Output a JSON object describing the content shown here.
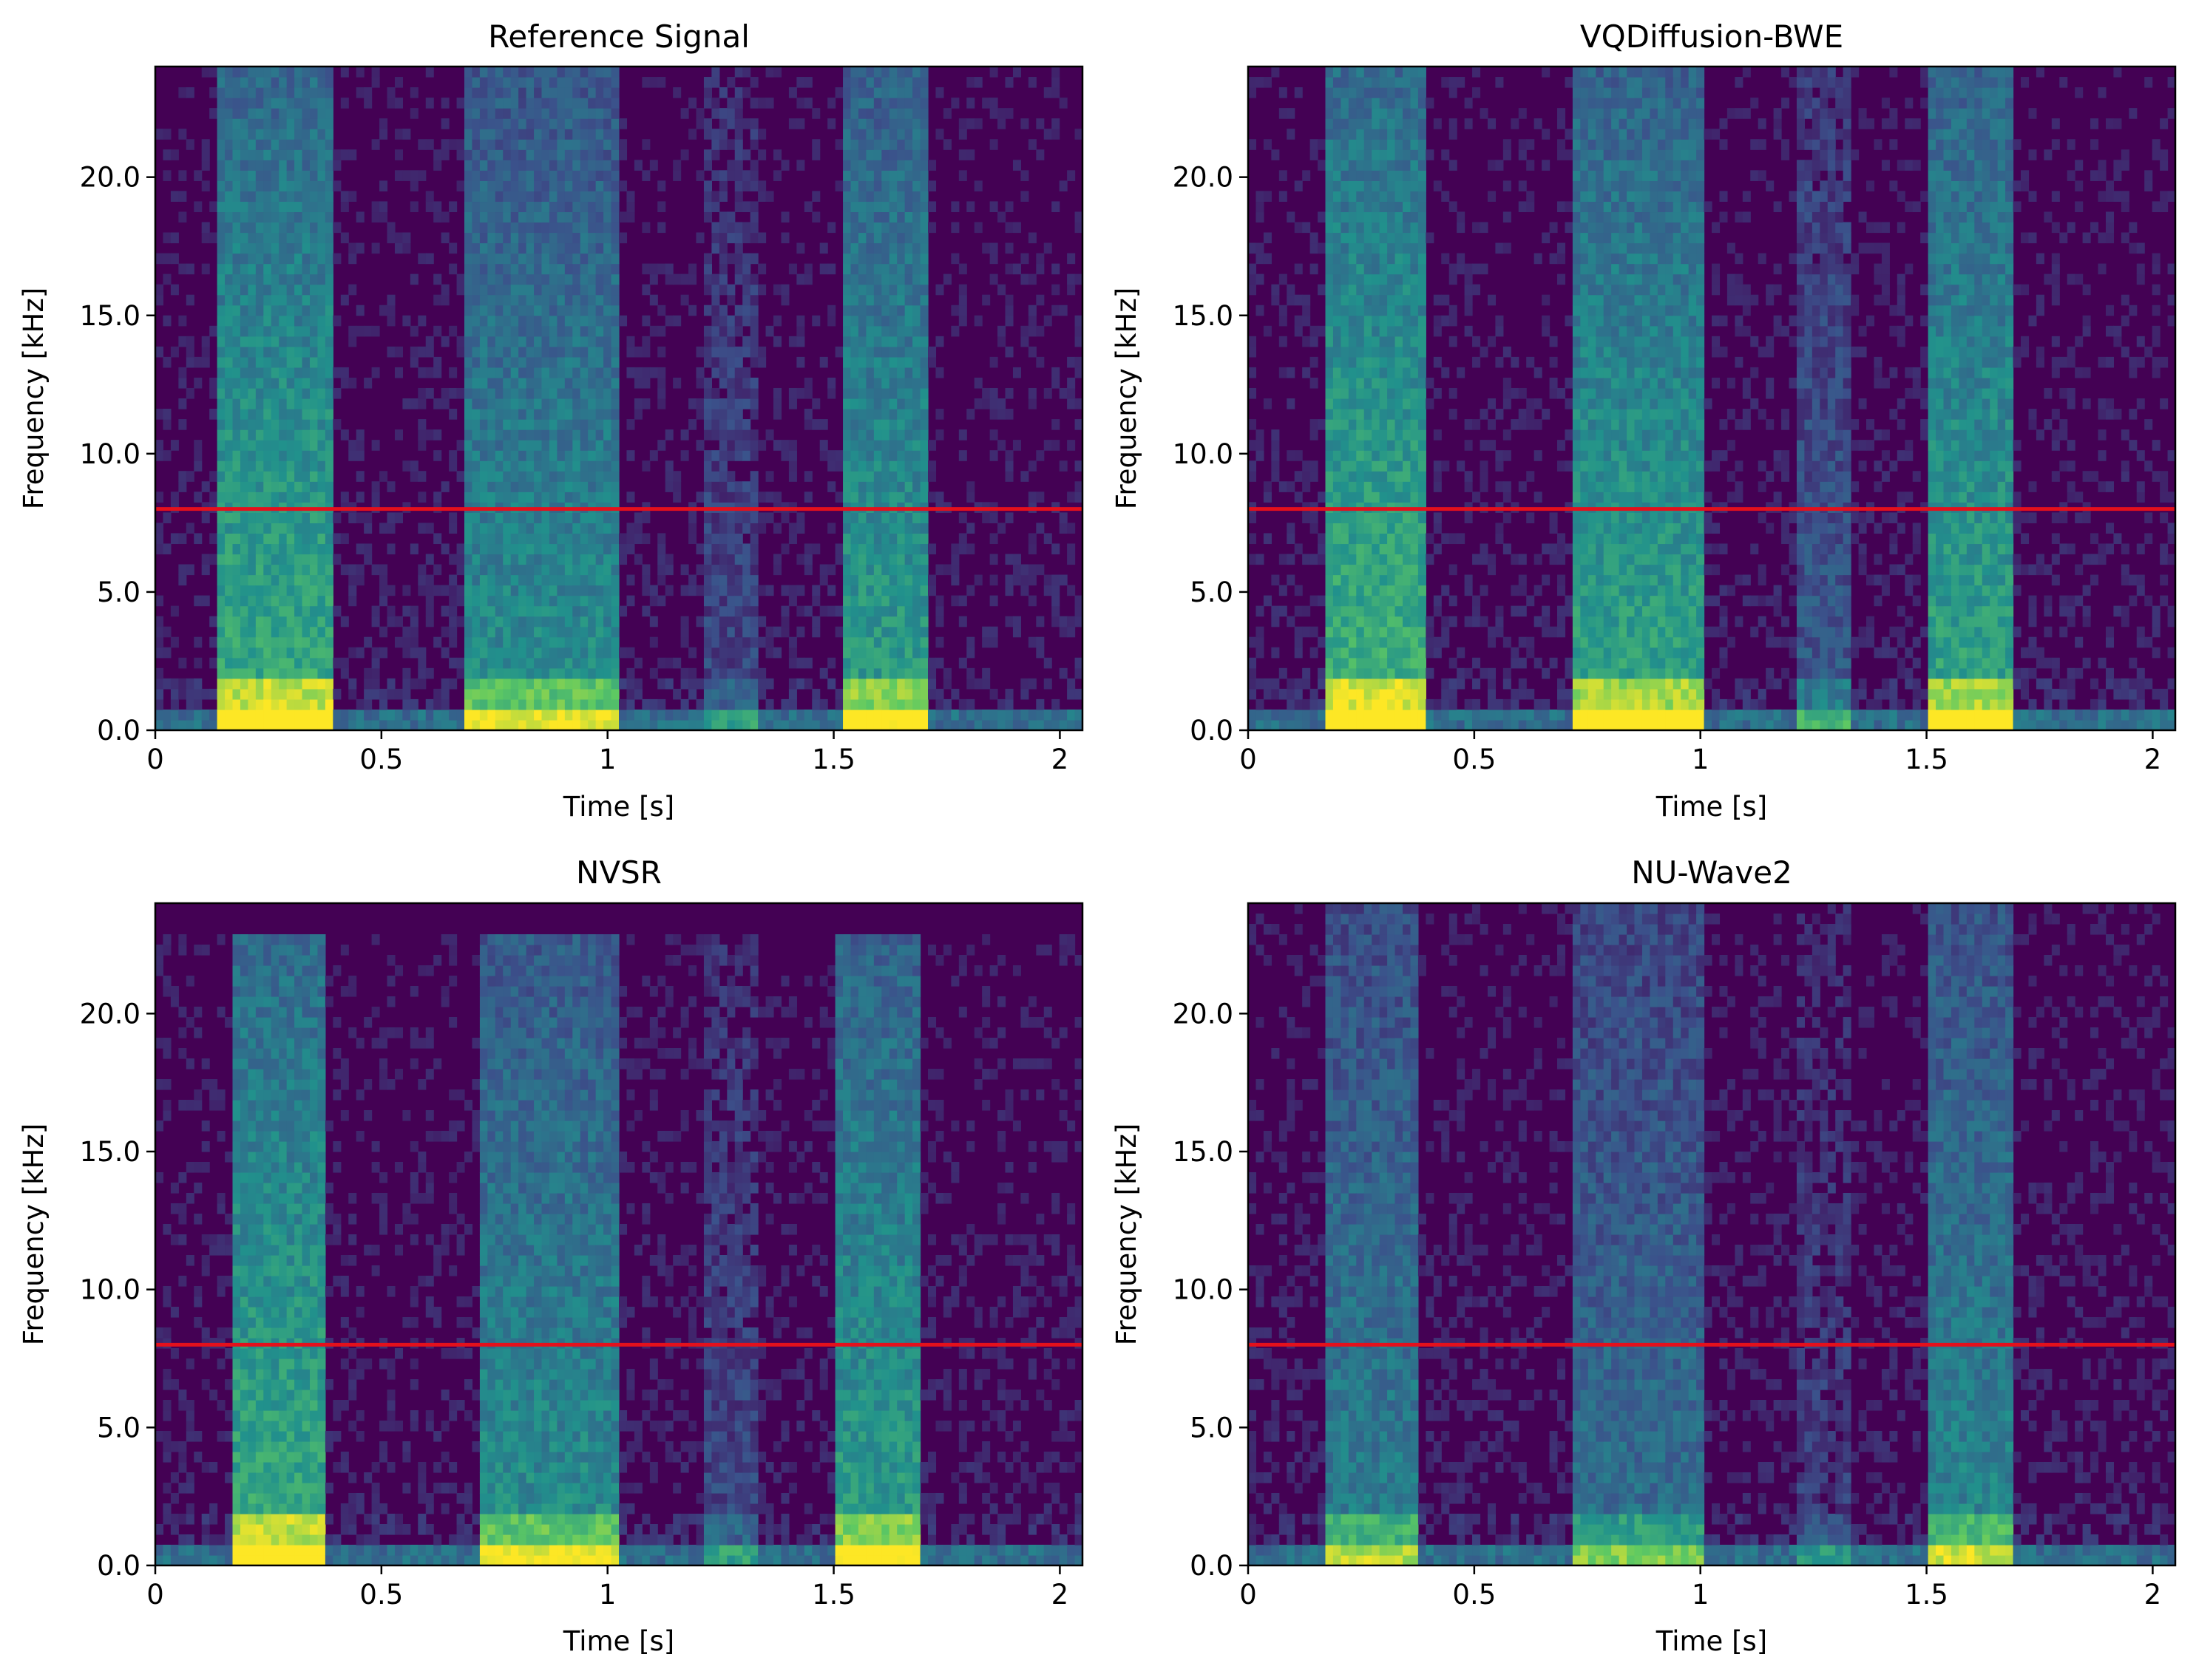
{
  "figure": {
    "background": "#ffffff",
    "cutoff_color": "#e4101c",
    "colormap": "viridis"
  },
  "chart_data": [
    {
      "type": "heatmap",
      "id": "reference",
      "title": "Reference Signal",
      "xlabel": "Time [s]",
      "ylabel": "Frequency [kHz]",
      "xlim": [
        0,
        2.05
      ],
      "ylim": [
        0,
        24
      ],
      "xticks": [
        0,
        0.5,
        1,
        1.5,
        2
      ],
      "xtick_labels": [
        "0",
        "0.5",
        "1",
        "1.5",
        "2"
      ],
      "yticks": [
        0,
        5,
        10,
        15,
        20
      ],
      "ytick_labels": [
        "0.0",
        "5.0",
        "10.0",
        "15.0",
        "20.0"
      ],
      "cutoff_khz": 8.0,
      "segments": [
        [
          0.17,
          0.37,
          1.0
        ],
        [
          0.72,
          1.0,
          0.8
        ],
        [
          1.24,
          1.3,
          0.35
        ],
        [
          1.55,
          1.68,
          0.9
        ]
      ],
      "hf_extent_khz": 24
    },
    {
      "type": "heatmap",
      "id": "vqdiffusion",
      "title": "VQDiffusion-BWE",
      "xlabel": "Time [s]",
      "ylabel": "Frequency [kHz]",
      "xlim": [
        0,
        2.05
      ],
      "ylim": [
        0,
        24
      ],
      "xticks": [
        0,
        0.5,
        1,
        1.5,
        2
      ],
      "xtick_labels": [
        "0",
        "0.5",
        "1",
        "1.5",
        "2"
      ],
      "yticks": [
        0,
        5,
        10,
        15,
        20
      ],
      "ytick_labels": [
        "0.0",
        "5.0",
        "10.0",
        "15.0",
        "20.0"
      ],
      "cutoff_khz": 8.0,
      "segments": [
        [
          0.2,
          0.36,
          1.05
        ],
        [
          0.75,
          0.98,
          0.95
        ],
        [
          1.24,
          1.3,
          0.45
        ],
        [
          1.54,
          1.66,
          0.95
        ]
      ],
      "hf_extent_khz": 24
    },
    {
      "type": "heatmap",
      "id": "nvsr",
      "title": "NVSR",
      "xlabel": "Time [s]",
      "ylabel": "Frequency [kHz]",
      "xlim": [
        0,
        2.05
      ],
      "ylim": [
        0,
        24
      ],
      "xticks": [
        0,
        0.5,
        1,
        1.5,
        2
      ],
      "xtick_labels": [
        "0",
        "0.5",
        "1",
        "1.5",
        "2"
      ],
      "yticks": [
        0,
        5,
        10,
        15,
        20
      ],
      "ytick_labels": [
        "0.0",
        "5.0",
        "10.0",
        "15.0",
        "20.0"
      ],
      "cutoff_khz": 8.0,
      "segments": [
        [
          0.2,
          0.34,
          1.0
        ],
        [
          0.75,
          0.99,
          0.8
        ],
        [
          1.24,
          1.3,
          0.35
        ],
        [
          1.54,
          1.66,
          0.9
        ]
      ],
      "hf_extent_khz": 23
    },
    {
      "type": "heatmap",
      "id": "nuwave2",
      "title": "NU-Wave2",
      "xlabel": "Time [s]",
      "ylabel": "Frequency [kHz]",
      "xlim": [
        0,
        2.05
      ],
      "ylim": [
        0,
        24
      ],
      "xticks": [
        0,
        0.5,
        1,
        1.5,
        2
      ],
      "xtick_labels": [
        "0",
        "0.5",
        "1",
        "1.5",
        "2"
      ],
      "yticks": [
        0,
        5,
        10,
        15,
        20
      ],
      "ytick_labels": [
        "0.0",
        "5.0",
        "10.0",
        "15.0",
        "20.0"
      ],
      "cutoff_khz": 8.0,
      "segments": [
        [
          0.2,
          0.34,
          0.7
        ],
        [
          0.75,
          0.98,
          0.6
        ],
        [
          1.24,
          1.3,
          0.3
        ],
        [
          1.54,
          1.66,
          0.75
        ]
      ],
      "hf_extent_khz": 24
    }
  ]
}
